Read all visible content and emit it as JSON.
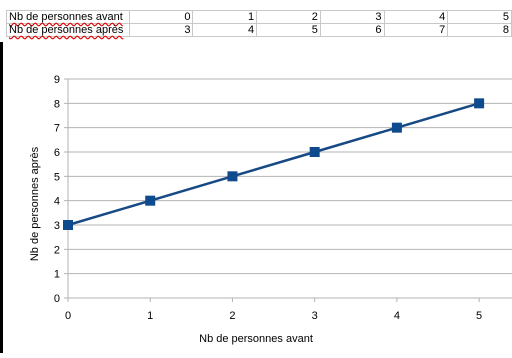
{
  "sheet": {
    "rows": [
      {
        "label": "Nb de personnes avant",
        "values": [
          "0",
          "1",
          "2",
          "3",
          "4",
          "5"
        ]
      },
      {
        "label": "Nb de personnes après",
        "values": [
          "3",
          "4",
          "5",
          "6",
          "7",
          "8"
        ]
      }
    ]
  },
  "chart_data": {
    "type": "line",
    "x": [
      0,
      1,
      2,
      3,
      4,
      5
    ],
    "series": [
      {
        "values": [
          3,
          4,
          5,
          6,
          7,
          8
        ],
        "color": "#174a85"
      }
    ],
    "xlabel": "Nb de personnes avant",
    "ylabel": "Nb de personnes après",
    "xticks": [
      "0",
      "1",
      "2",
      "3",
      "4",
      "5"
    ],
    "yticks": [
      "0",
      "1",
      "2",
      "3",
      "4",
      "5",
      "6",
      "7",
      "8",
      "9"
    ],
    "xlim": [
      0,
      5.4
    ],
    "ylim": [
      0,
      9
    ],
    "grid": true,
    "marker": "square"
  }
}
